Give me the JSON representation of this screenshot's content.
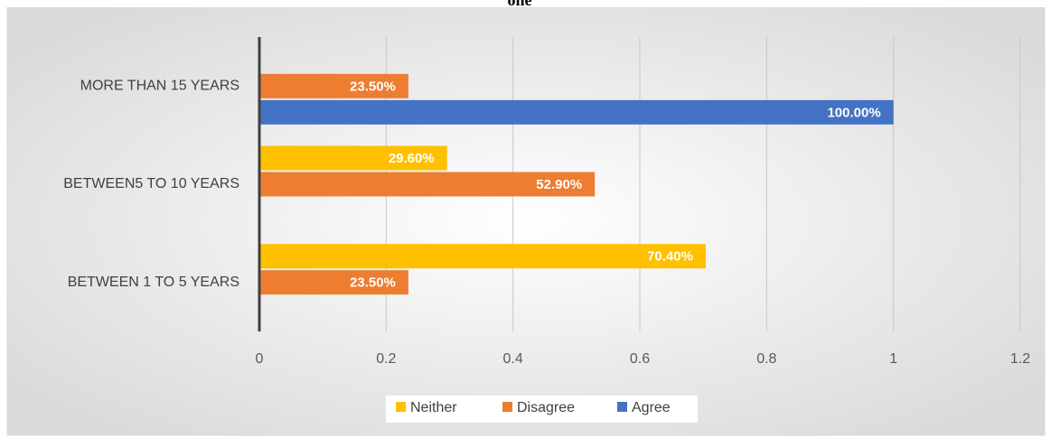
{
  "chart_data": {
    "type": "bar",
    "orientation": "horizontal",
    "title": "one",
    "categories": [
      "BETWEEN 1 TO 5 YEARS",
      "BETWEEN5 TO 10 YEARS",
      "MORE THAN 15  YEARS"
    ],
    "series": [
      {
        "name": "Neither",
        "color": "#ffc000",
        "values": [
          0.704,
          0.296,
          null
        ],
        "value_labels": [
          "70.40%",
          "29.60%",
          null
        ]
      },
      {
        "name": "Disagree",
        "color": "#ed7d31",
        "values": [
          0.235,
          0.529,
          0.235
        ],
        "value_labels": [
          "23.50%",
          "52.90%",
          "23.50%"
        ]
      },
      {
        "name": "Agree",
        "color": "#4472c4",
        "values": [
          null,
          null,
          1.0
        ],
        "value_labels": [
          null,
          null,
          "100.00%"
        ]
      }
    ],
    "xlim": [
      0,
      1.2
    ],
    "xticks": [
      0,
      0.2,
      0.4,
      0.6,
      0.8,
      1,
      1.2
    ],
    "grid": true,
    "legend": "bottom"
  }
}
